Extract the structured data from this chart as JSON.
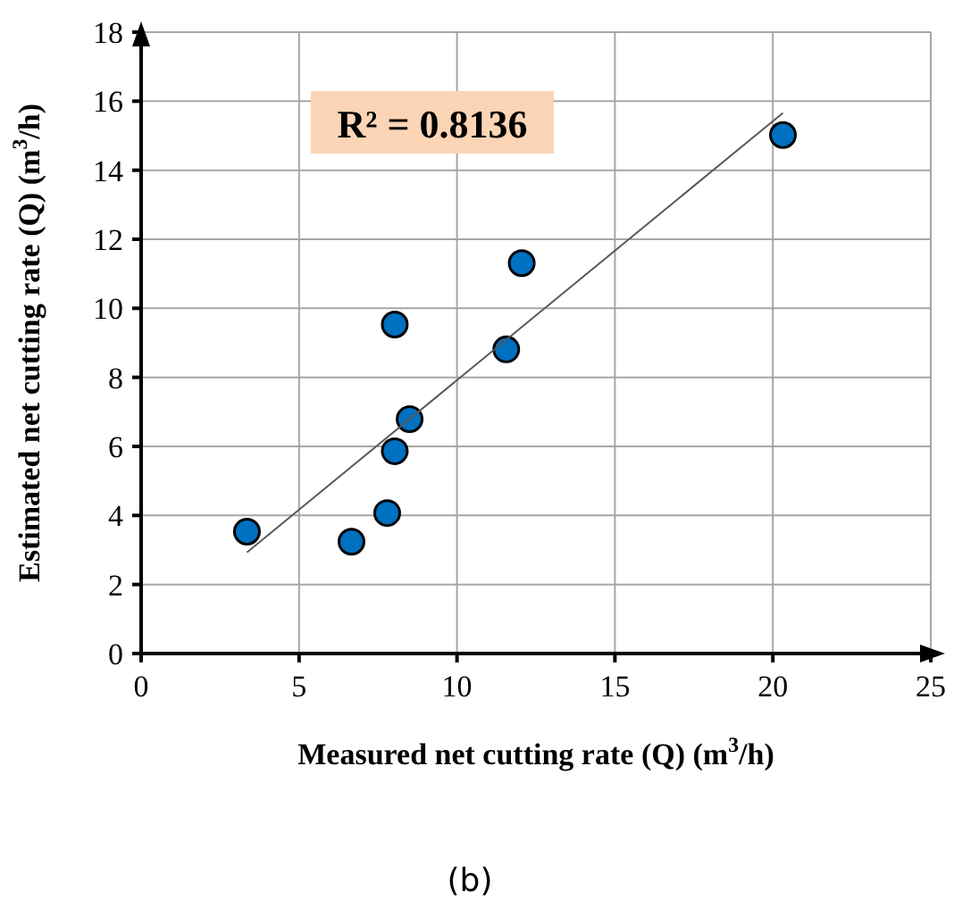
{
  "chart_data": {
    "type": "scatter",
    "xlabel": "Measured net cutting rate (Q) (m$^{3}$/h)",
    "ylabel": "Estimated net cutting rate (Q) (m$^{3}$/h)",
    "xlim": [
      0,
      25
    ],
    "xticks": [
      0,
      5,
      10,
      15,
      20,
      25
    ],
    "ylim": [
      0,
      18
    ],
    "yticks": [
      0,
      2,
      4,
      6,
      8,
      10,
      12,
      14,
      16,
      18
    ],
    "grid": true,
    "series": [
      {
        "marker": "circle",
        "color": "#0070c0",
        "x": [
          3.35,
          6.66,
          7.79,
          8.03,
          8.5,
          8.03,
          11.56,
          12.05,
          20.32
        ],
        "values": [
          3.53,
          3.24,
          4.07,
          5.86,
          6.79,
          9.53,
          8.81,
          11.31,
          15.02
        ]
      },
      {
        "type": "line",
        "color": "#595959",
        "x": [
          3.35,
          20.32
        ],
        "values": [
          2.93,
          15.66
        ]
      }
    ],
    "annotations": [
      "R² = 0.8136",
      "(b)"
    ]
  }
}
